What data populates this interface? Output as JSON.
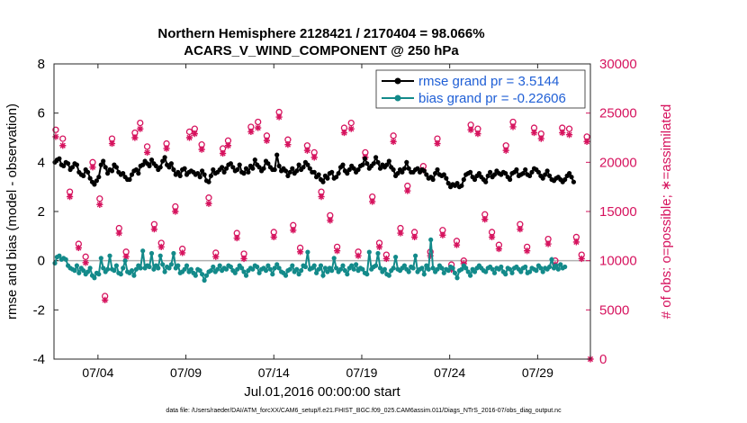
{
  "colors": {
    "rmse": "#000000",
    "bias": "#138a8a",
    "obs": "#d6135e",
    "zero_line": "#b0b0b0",
    "legend_text": "#1f5fd6"
  },
  "chart_data": {
    "type": "line",
    "title": "Northern Hemisphere 2128421 / 2170404 = 98.066%",
    "subtitle": "ACARS_V_WIND_COMPONENT @ 250 hPa",
    "xlabel": "Jul.01,2016 00:00:00 start",
    "ylabel_left": "rmse and bias (model - observation)",
    "ylabel_right": "# of obs: o=possible; ∗=assimilated",
    "xlim": [
      1.5,
      32.0
    ],
    "ylim_left": [
      -4,
      8
    ],
    "ylim_right": [
      0,
      30000
    ],
    "x_ticks": [
      4,
      9,
      14,
      19,
      24,
      29
    ],
    "x_tick_labels": [
      "07/04",
      "07/09",
      "07/14",
      "07/19",
      "07/24",
      "07/29"
    ],
    "y_left_ticks": [
      "-4",
      "-2",
      "0",
      "2",
      "4",
      "6",
      "8"
    ],
    "y_right_ticks": [
      "0",
      "5000",
      "10000",
      "15000",
      "20000",
      "25000",
      "30000"
    ],
    "legend": [
      "rmse grand pr = 3.5144",
      "bias grand pr = -0.22606"
    ],
    "legend_position": "top-right",
    "footnote": "data file: /Users/raeder/DAI/ATM_forcXX/CAM6_setup/f.e21.FHIST_BGC.f09_025.CAM6assim.011/Diags_NTrS_2016-07/obs_diag_output.nc",
    "time_step_days": 0.125,
    "series": [
      {
        "name": "rmse",
        "values": [
          4.0,
          4.1,
          4.15,
          3.9,
          3.85,
          4.0,
          3.95,
          3.7,
          3.8,
          3.95,
          3.9,
          3.6,
          3.5,
          3.45,
          3.7,
          3.6,
          3.35,
          3.2,
          3.1,
          3.25,
          3.4,
          3.9,
          4.05,
          3.8,
          3.55,
          3.7,
          3.65,
          3.9,
          3.8,
          3.6,
          3.5,
          3.55,
          3.4,
          3.3,
          3.3,
          3.5,
          3.65,
          3.7,
          3.55,
          3.85,
          3.9,
          4.05,
          3.95,
          3.85,
          4.1,
          3.95,
          3.85,
          3.7,
          3.8,
          4.05,
          4.2,
          3.9,
          3.8,
          3.95,
          3.7,
          3.5,
          3.6,
          3.45,
          3.7,
          3.75,
          3.5,
          3.6,
          3.65,
          3.6,
          3.5,
          3.55,
          3.4,
          3.65,
          3.5,
          3.25,
          3.2,
          3.45,
          3.7,
          3.55,
          3.6,
          3.7,
          3.8,
          3.6,
          3.75,
          3.9,
          3.95,
          3.8,
          3.65,
          3.7,
          3.9,
          3.6,
          3.55,
          3.75,
          3.6,
          3.85,
          3.75,
          4.1,
          3.9,
          3.8,
          3.65,
          3.75,
          4.05,
          3.95,
          3.8,
          3.7,
          3.7,
          4.3,
          3.85,
          3.65,
          3.75,
          3.65,
          3.45,
          3.6,
          3.75,
          3.55,
          3.65,
          3.9,
          3.7,
          3.8,
          4.0,
          3.9,
          3.75,
          3.6,
          3.6,
          3.4,
          3.5,
          3.3,
          3.2,
          3.45,
          3.35,
          3.55,
          3.6,
          3.35,
          3.4,
          3.55,
          3.8,
          3.9,
          3.65,
          3.55,
          3.7,
          3.85,
          3.75,
          3.6,
          3.7,
          3.85,
          3.9,
          4.15,
          3.95,
          3.75,
          3.85,
          3.95,
          4.2,
          4.0,
          3.75,
          3.9,
          3.8,
          3.9,
          4.05,
          3.8,
          3.7,
          3.45,
          3.55,
          3.7,
          3.6,
          3.75,
          4.0,
          3.75,
          3.6,
          3.6,
          3.7,
          3.75,
          3.6,
          3.7,
          3.65,
          3.5,
          3.35,
          3.4,
          3.3,
          3.55,
          3.7,
          3.5,
          3.45,
          3.5,
          3.35,
          3.15,
          3.0,
          3.1,
          3.05,
          3.15,
          3.0,
          3.05,
          3.3,
          3.5,
          3.55,
          3.6,
          3.4,
          3.3,
          3.45,
          3.55,
          3.4,
          3.3,
          3.2,
          3.45,
          3.6,
          3.4,
          3.5,
          3.65,
          3.55,
          3.5,
          3.6,
          3.55,
          3.4,
          3.3,
          3.55,
          3.6,
          3.7,
          3.45,
          3.5,
          3.55,
          3.7,
          3.5,
          3.45,
          3.6,
          3.75,
          3.7,
          3.6,
          3.45,
          3.35,
          3.5,
          3.65,
          3.45,
          3.3,
          3.25,
          3.35,
          3.4,
          3.3,
          3.2,
          3.3,
          3.45,
          3.55,
          3.4,
          3.2
        ]
      },
      {
        "name": "bias",
        "values": [
          -0.1,
          0.15,
          0.2,
          0.05,
          0.1,
          0.05,
          -0.2,
          -0.3,
          -0.35,
          -0.4,
          -0.2,
          -0.5,
          -0.3,
          -0.4,
          -0.55,
          -0.45,
          -0.3,
          -0.6,
          -0.7,
          -0.5,
          -0.55,
          0.1,
          -0.3,
          -0.45,
          -0.35,
          0.2,
          -0.35,
          -0.4,
          -0.2,
          -0.5,
          -0.55,
          -0.3,
          0.0,
          -0.45,
          -0.5,
          -0.4,
          -0.6,
          -0.35,
          -0.2,
          -0.3,
          0.4,
          -0.3,
          -0.2,
          -0.25,
          0.3,
          -0.35,
          -0.2,
          -0.3,
          0.2,
          -0.15,
          -0.45,
          -0.25,
          -0.3,
          -0.15,
          0.3,
          -0.3,
          -0.2,
          -0.5,
          -0.45,
          -0.35,
          -0.2,
          -0.45,
          -0.35,
          -0.5,
          -0.6,
          -0.35,
          -0.4,
          -0.55,
          -0.8,
          -0.6,
          -0.45,
          -0.4,
          -0.25,
          -0.45,
          -0.35,
          -0.2,
          -0.4,
          -0.3,
          -0.35,
          -0.2,
          -0.25,
          -0.4,
          -0.5,
          -0.35,
          -0.2,
          -0.3,
          -0.45,
          -0.6,
          -0.4,
          -0.3,
          -0.35,
          -0.2,
          -0.25,
          -0.5,
          -0.35,
          -0.3,
          -0.4,
          -0.2,
          -0.35,
          -0.55,
          -0.3,
          -0.15,
          -0.3,
          -0.45,
          -0.5,
          -0.6,
          -0.4,
          -0.35,
          -0.2,
          -0.45,
          -0.35,
          -0.55,
          -0.4,
          -0.2,
          -0.25,
          0.35,
          -0.35,
          -0.3,
          -0.2,
          -0.5,
          -0.35,
          -0.2,
          -0.6,
          -0.3,
          -0.45,
          -0.3,
          -0.4,
          0.1,
          -0.3,
          -0.45,
          -0.35,
          -0.2,
          -0.4,
          -0.55,
          -0.3,
          -0.2,
          -0.35,
          -0.15,
          -0.4,
          -0.3,
          -0.35,
          -0.5,
          -0.55,
          0.35,
          -0.35,
          -0.25,
          -0.2,
          0.3,
          -0.3,
          -0.45,
          -0.35,
          -0.55,
          -0.6,
          -0.4,
          -0.3,
          0.15,
          -0.35,
          -0.4,
          -0.3,
          -0.2,
          -0.35,
          -0.45,
          -0.25,
          -0.3,
          0.2,
          -0.45,
          -0.35,
          -0.3,
          -0.55,
          -0.2,
          -0.35,
          0.85,
          -0.3,
          -0.45,
          -0.35,
          -0.2,
          -0.3,
          -0.5,
          -0.35,
          -0.4,
          -0.25,
          -0.3,
          -0.5,
          -0.7,
          -0.4,
          -0.35,
          -0.2,
          -0.3,
          -0.45,
          -0.6,
          -0.35,
          -0.45,
          -0.3,
          -0.2,
          -0.3,
          -0.4,
          -0.45,
          -0.3,
          -0.25,
          -0.35,
          -0.5,
          -0.3,
          -0.35,
          -0.25,
          -0.45,
          -0.55,
          -0.3,
          -0.35,
          -0.5,
          -0.3,
          -0.25,
          -0.35,
          -0.45,
          -0.3,
          -0.25,
          -0.5,
          -0.45,
          -0.3,
          -0.35,
          -0.4,
          -0.2,
          -0.3,
          -0.45,
          -0.3,
          -0.35,
          -0.25,
          0.05,
          -0.3,
          -0.2,
          -0.35,
          -0.15,
          -0.3,
          -0.25
        ]
      },
      {
        "name": "obs_possible",
        "points": [
          [
            1.6,
            23300
          ],
          [
            2.0,
            22400
          ],
          [
            2.4,
            17000
          ],
          [
            2.9,
            11700
          ],
          [
            3.3,
            10400
          ],
          [
            3.7,
            20000
          ],
          [
            4.1,
            16300
          ],
          [
            4.4,
            6400
          ],
          [
            4.8,
            22400
          ],
          [
            5.2,
            13300
          ],
          [
            5.6,
            10900
          ],
          [
            6.1,
            23000
          ],
          [
            6.4,
            24000
          ],
          [
            6.8,
            21600
          ],
          [
            7.2,
            13700
          ],
          [
            7.6,
            11800
          ],
          [
            7.9,
            21900
          ],
          [
            8.4,
            15500
          ],
          [
            8.8,
            11200
          ],
          [
            9.2,
            23100
          ],
          [
            9.5,
            23400
          ],
          [
            9.9,
            21800
          ],
          [
            10.3,
            16400
          ],
          [
            10.7,
            10800
          ],
          [
            11.1,
            21400
          ],
          [
            11.4,
            22200
          ],
          [
            11.9,
            12800
          ],
          [
            12.3,
            10700
          ],
          [
            12.7,
            23600
          ],
          [
            13.1,
            24100
          ],
          [
            13.6,
            22700
          ],
          [
            14.0,
            12900
          ],
          [
            14.3,
            25100
          ],
          [
            14.8,
            22300
          ],
          [
            15.1,
            13600
          ],
          [
            15.5,
            11300
          ],
          [
            15.9,
            21700
          ],
          [
            16.3,
            21000
          ],
          [
            16.7,
            17000
          ],
          [
            17.2,
            14600
          ],
          [
            17.6,
            11400
          ],
          [
            18.0,
            23500
          ],
          [
            18.4,
            24000
          ],
          [
            18.8,
            10900
          ],
          [
            19.2,
            21000
          ],
          [
            19.6,
            16500
          ],
          [
            20.0,
            11800
          ],
          [
            20.4,
            10600
          ],
          [
            20.8,
            22700
          ],
          [
            21.2,
            13300
          ],
          [
            21.6,
            17600
          ],
          [
            22.0,
            12900
          ],
          [
            22.5,
            19600
          ],
          [
            22.9,
            10900
          ],
          [
            23.3,
            22400
          ],
          [
            23.6,
            13100
          ],
          [
            24.1,
            9600
          ],
          [
            24.4,
            12000
          ],
          [
            24.8,
            10000
          ],
          [
            25.2,
            23800
          ],
          [
            25.6,
            23400
          ],
          [
            26.0,
            14700
          ],
          [
            26.4,
            12900
          ],
          [
            26.8,
            11600
          ],
          [
            27.2,
            21700
          ],
          [
            27.6,
            24100
          ],
          [
            28.0,
            13700
          ],
          [
            28.4,
            11400
          ],
          [
            28.8,
            23500
          ],
          [
            29.2,
            22900
          ],
          [
            29.6,
            12200
          ],
          [
            30.0,
            10000
          ],
          [
            30.4,
            23500
          ],
          [
            30.8,
            23400
          ],
          [
            31.2,
            12400
          ],
          [
            31.5,
            10600
          ],
          [
            31.8,
            22600
          ]
        ]
      },
      {
        "name": "obs_assimilated",
        "points": [
          [
            1.6,
            22600
          ],
          [
            2.0,
            21700
          ],
          [
            2.4,
            16500
          ],
          [
            2.9,
            11300
          ],
          [
            3.3,
            9800
          ],
          [
            3.7,
            19500
          ],
          [
            4.1,
            15700
          ],
          [
            4.4,
            6000
          ],
          [
            4.8,
            21900
          ],
          [
            5.2,
            12800
          ],
          [
            5.6,
            10400
          ],
          [
            6.1,
            22500
          ],
          [
            6.4,
            23400
          ],
          [
            6.8,
            21000
          ],
          [
            7.2,
            13200
          ],
          [
            7.6,
            11400
          ],
          [
            7.9,
            21400
          ],
          [
            8.4,
            15000
          ],
          [
            8.8,
            10800
          ],
          [
            9.2,
            22500
          ],
          [
            9.5,
            22900
          ],
          [
            9.9,
            21300
          ],
          [
            10.3,
            15800
          ],
          [
            10.7,
            10400
          ],
          [
            11.1,
            20900
          ],
          [
            11.4,
            21700
          ],
          [
            11.9,
            12300
          ],
          [
            12.3,
            10200
          ],
          [
            12.7,
            23100
          ],
          [
            13.1,
            23500
          ],
          [
            13.6,
            22200
          ],
          [
            14.0,
            12400
          ],
          [
            14.3,
            24600
          ],
          [
            14.8,
            21800
          ],
          [
            15.1,
            13100
          ],
          [
            15.5,
            10900
          ],
          [
            15.9,
            21200
          ],
          [
            16.3,
            20500
          ],
          [
            16.7,
            16500
          ],
          [
            17.2,
            14100
          ],
          [
            17.6,
            11000
          ],
          [
            18.0,
            23000
          ],
          [
            18.4,
            23400
          ],
          [
            18.8,
            10500
          ],
          [
            19.2,
            20500
          ],
          [
            19.6,
            16000
          ],
          [
            20.0,
            11400
          ],
          [
            20.4,
            10200
          ],
          [
            20.8,
            22100
          ],
          [
            21.2,
            12800
          ],
          [
            21.6,
            17100
          ],
          [
            22.0,
            12400
          ],
          [
            22.5,
            19200
          ],
          [
            22.9,
            10500
          ],
          [
            23.3,
            21900
          ],
          [
            23.6,
            12600
          ],
          [
            24.1,
            9100
          ],
          [
            24.4,
            11600
          ],
          [
            24.8,
            9700
          ],
          [
            25.2,
            23300
          ],
          [
            25.6,
            22900
          ],
          [
            26.0,
            14200
          ],
          [
            26.4,
            12400
          ],
          [
            26.8,
            11200
          ],
          [
            27.2,
            21200
          ],
          [
            27.6,
            23600
          ],
          [
            28.0,
            13200
          ],
          [
            28.4,
            11000
          ],
          [
            28.8,
            23000
          ],
          [
            29.2,
            22400
          ],
          [
            29.6,
            11700
          ],
          [
            30.0,
            9600
          ],
          [
            30.4,
            23000
          ],
          [
            30.8,
            22800
          ],
          [
            31.2,
            11900
          ],
          [
            31.5,
            10200
          ],
          [
            31.8,
            22100
          ],
          [
            32.0,
            0
          ]
        ]
      }
    ]
  }
}
